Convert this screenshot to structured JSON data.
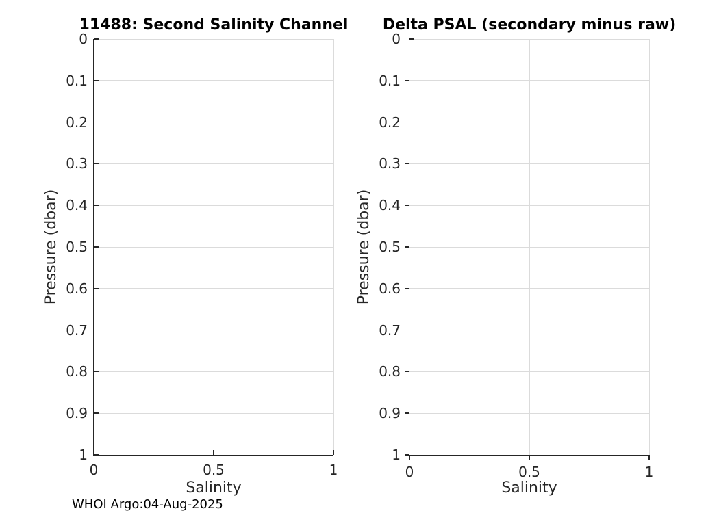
{
  "figure": {
    "footer_text": "WHOI Argo:04-Aug-2025",
    "colors": {
      "background": "#ffffff",
      "axis": "#262626",
      "grid": "#dbdbdb",
      "title": "#000000",
      "tick_label": "#262626"
    }
  },
  "chart_data": [
    {
      "type": "line",
      "title": "11488: Second Salinity Channel",
      "xlabel": "Salinity",
      "ylabel": "Pressure (dbar)",
      "xlim": [
        0,
        1
      ],
      "ylim": [
        0,
        1
      ],
      "y_direction": "reverse",
      "grid": true,
      "tick_direction": "in",
      "xticks": [
        0,
        0.5,
        1
      ],
      "xtick_labels": [
        "0",
        "0.5",
        "1"
      ],
      "yticks": [
        0,
        0.1,
        0.2,
        0.3,
        0.4,
        0.5,
        0.6,
        0.7,
        0.8,
        0.9,
        1
      ],
      "ytick_labels": [
        "0",
        "0.1",
        "0.2",
        "0.3",
        "0.4",
        "0.5",
        "0.6",
        "0.7",
        "0.8",
        "0.9",
        "1"
      ],
      "series": []
    },
    {
      "type": "line",
      "title": "Delta PSAL (secondary minus raw)",
      "xlabel": "Salinity",
      "ylabel": "Pressure (dbar)",
      "xlim": [
        0,
        1
      ],
      "ylim": [
        0,
        1
      ],
      "y_direction": "reverse",
      "grid": true,
      "tick_direction": "out",
      "xticks": [
        0,
        0.5,
        1
      ],
      "xtick_labels": [
        "0",
        "0.5",
        "1"
      ],
      "yticks": [
        0,
        0.1,
        0.2,
        0.3,
        0.4,
        0.5,
        0.6,
        0.7,
        0.8,
        0.9,
        1
      ],
      "ytick_labels": [
        "0",
        "0.1",
        "0.2",
        "0.3",
        "0.4",
        "0.5",
        "0.6",
        "0.7",
        "0.8",
        "0.9",
        "1"
      ],
      "series": []
    }
  ]
}
